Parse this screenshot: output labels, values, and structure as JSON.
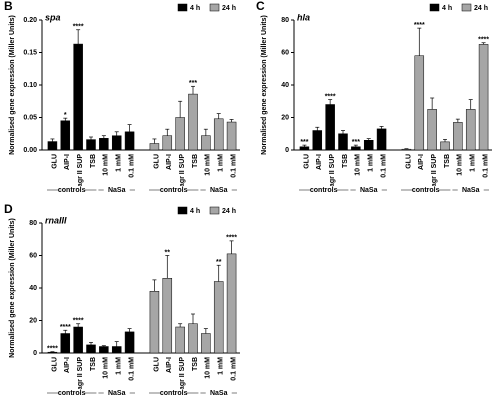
{
  "chart_data": [
    {
      "type": "bar",
      "panel": "B",
      "title": "spa",
      "ylabel": "Normalised gene expression (Miller Units)",
      "categories": [
        "GLU",
        "AIP-I",
        "agr II SUP",
        "TSB",
        "10 mM",
        "1 mM",
        "0.1 mM"
      ],
      "groups": [
        "controls",
        "NaSa"
      ],
      "series": [
        {
          "name": "4 h",
          "color": "#000000",
          "values": [
            0.013,
            0.045,
            0.163,
            0.016,
            0.018,
            0.022,
            0.028
          ],
          "errors": [
            0.004,
            0.004,
            0.022,
            0.004,
            0.004,
            0.006,
            0.011
          ],
          "stars": [
            null,
            "*",
            "****",
            null,
            null,
            null,
            null
          ]
        },
        {
          "name": "24 h",
          "color": "#a6a6a6",
          "values": [
            0.01,
            0.022,
            0.05,
            0.086,
            0.022,
            0.048,
            0.043
          ],
          "errors": [
            0.007,
            0.01,
            0.025,
            0.012,
            0.01,
            0.008,
            0.004
          ],
          "stars": [
            null,
            null,
            null,
            "***",
            null,
            null,
            null
          ]
        }
      ],
      "ylim": [
        0,
        0.2
      ],
      "yticks": [
        {
          "value": 0,
          "label": "0.00"
        },
        {
          "value": 0.05,
          "label": "0.05"
        },
        {
          "value": 0.1,
          "label": "0.10"
        },
        {
          "value": 0.15,
          "label": "0.15"
        },
        {
          "value": 0.2,
          "label": "0.20"
        }
      ]
    },
    {
      "type": "bar",
      "panel": "C",
      "title": "hla",
      "ylabel": "Normalised gene expression (Miller Units)",
      "categories": [
        "GLU",
        "AIP-I",
        "agr II SUP",
        "TSB",
        "10 mM",
        "1 mM",
        "0.1 mM"
      ],
      "groups": [
        "controls",
        "NaSa"
      ],
      "series": [
        {
          "name": "4 h",
          "color": "#000000",
          "values": [
            2,
            12,
            28,
            10,
            2,
            6,
            13
          ],
          "errors": [
            1,
            2,
            3,
            2,
            1,
            1,
            1.5
          ],
          "stars": [
            "***",
            null,
            "****",
            null,
            "***",
            null,
            null
          ]
        },
        {
          "name": "24 h",
          "color": "#a6a6a6",
          "values": [
            0.5,
            58,
            25,
            5,
            17,
            25,
            65
          ],
          "errors": [
            0.3,
            17,
            7,
            1.5,
            2,
            6,
            1
          ],
          "stars": [
            null,
            "****",
            null,
            null,
            null,
            null,
            "****"
          ]
        }
      ],
      "ylim": [
        0,
        80
      ],
      "yticks": [
        0,
        20,
        40,
        60,
        80
      ]
    },
    {
      "type": "bar",
      "panel": "D",
      "title": "rnaIII",
      "ylabel": "Normalised gene expression (Miller Units)",
      "categories": [
        "GLU",
        "AIP-I",
        "agr II SUP",
        "TSB",
        "10 mM",
        "1 mM",
        "0.1 mM"
      ],
      "groups": [
        "controls",
        "NaSa"
      ],
      "series": [
        {
          "name": "4 h",
          "color": "#000000",
          "values": [
            0.5,
            12,
            16,
            5,
            4,
            4,
            13
          ],
          "errors": [
            0.3,
            2,
            2,
            1.5,
            0.5,
            3,
            2
          ],
          "stars": [
            "****",
            "****",
            "****",
            null,
            null,
            null,
            null
          ]
        },
        {
          "name": "24 h",
          "color": "#a6a6a6",
          "values": [
            38,
            46,
            16,
            18,
            12,
            44,
            61
          ],
          "errors": [
            7,
            14,
            2,
            6,
            3,
            10,
            8
          ],
          "stars": [
            null,
            "**",
            null,
            null,
            null,
            "**",
            "****"
          ]
        }
      ],
      "ylim": [
        0,
        80
      ],
      "yticks": [
        0,
        20,
        40,
        60,
        80
      ]
    }
  ]
}
